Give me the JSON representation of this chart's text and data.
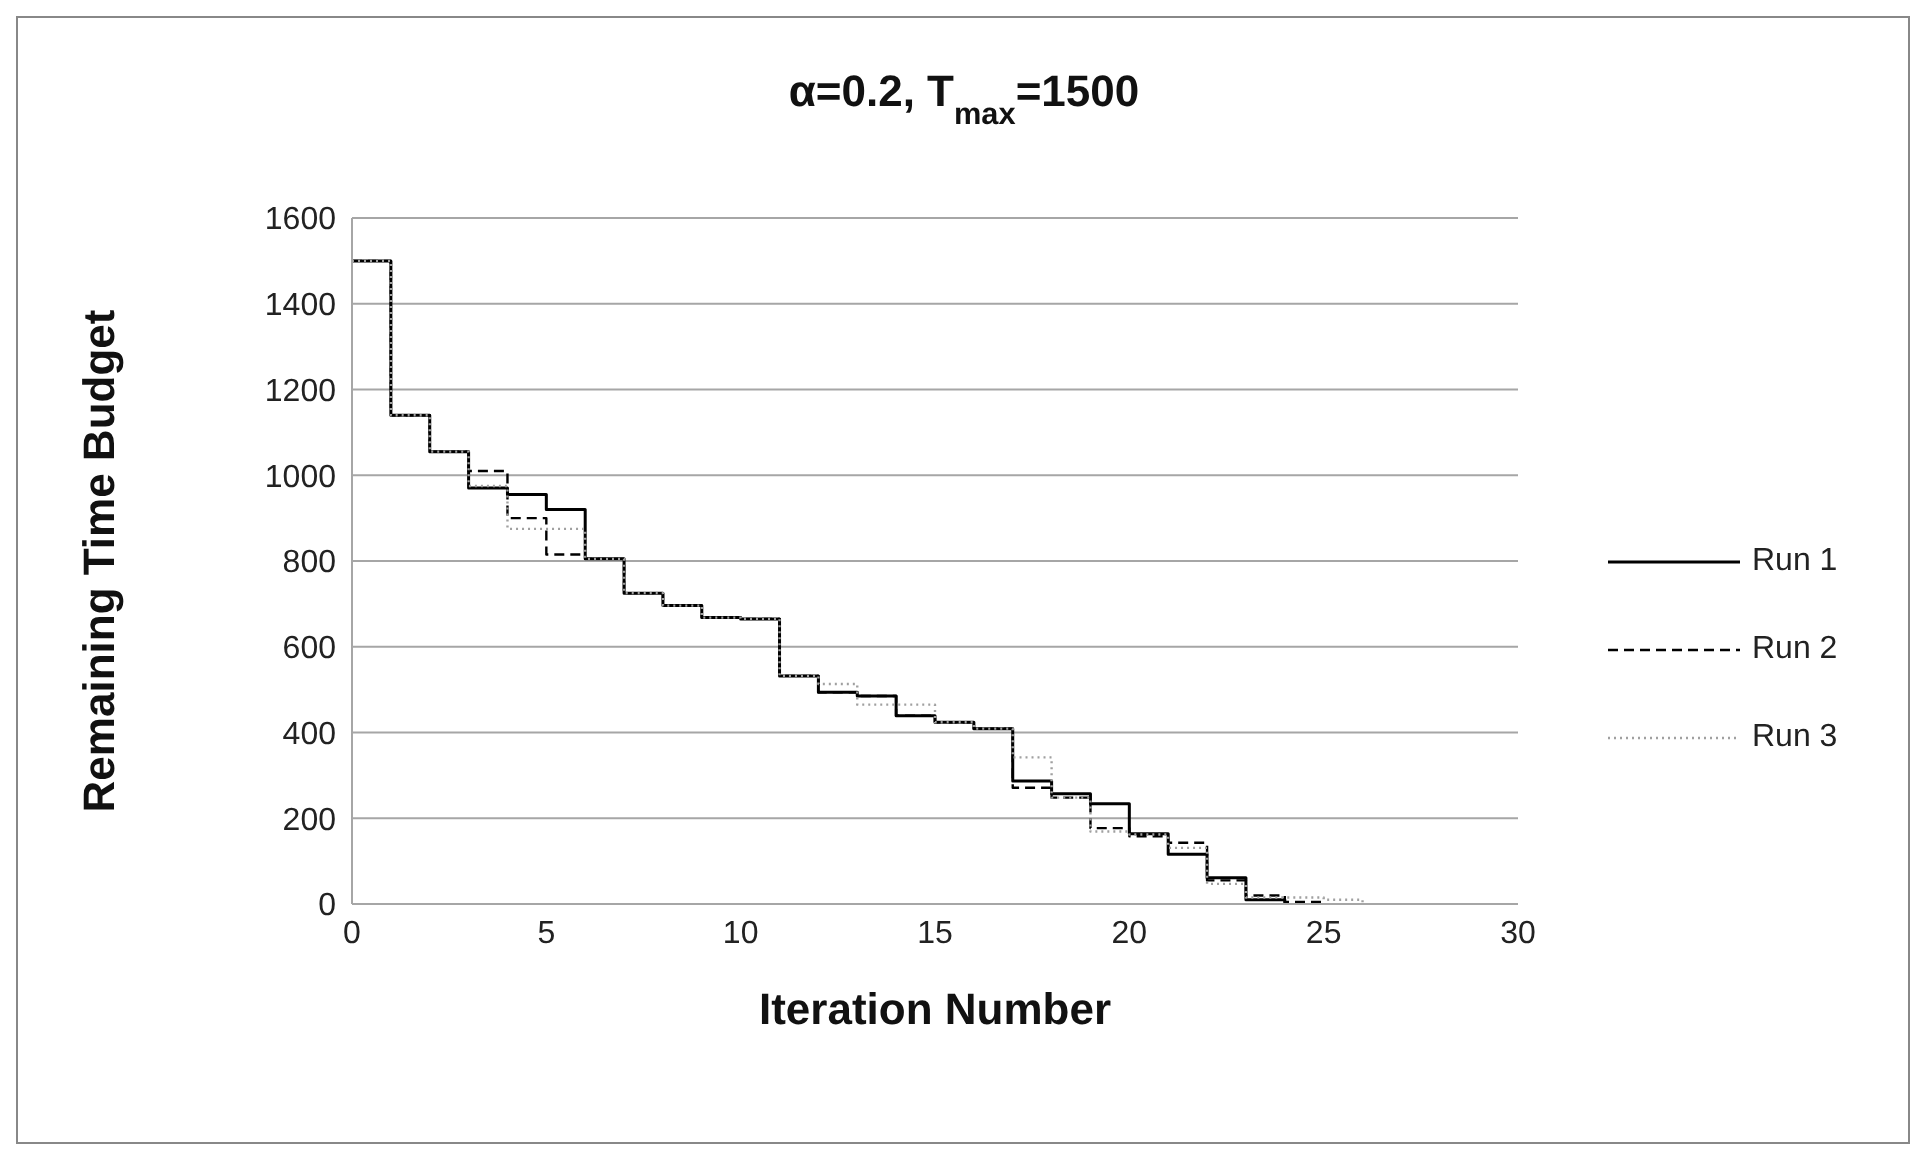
{
  "chart_data": {
    "type": "step",
    "title": "α=0.2, T$_{max}$=1500",
    "xlabel": "Iteration Number",
    "ylabel": "Remaining Time Budget",
    "xlim": [
      0,
      30
    ],
    "xticks": [
      0,
      5,
      10,
      15,
      20,
      25,
      30
    ],
    "ylim": [
      0,
      1600
    ],
    "yticks": [
      0,
      200,
      400,
      600,
      800,
      1000,
      1200,
      1400,
      1600
    ],
    "grid": "y",
    "legend": "right",
    "marker": "none",
    "series": [
      {
        "name": "Run 1",
        "color": "#000000",
        "line_style": "solid",
        "x": [
          0,
          1,
          2,
          3,
          4,
          5,
          6,
          7,
          8,
          9,
          10,
          11,
          12,
          13,
          14,
          15,
          16,
          17,
          18,
          19,
          20,
          21,
          22,
          23,
          24
        ],
        "values": [
          1500,
          1140,
          1055,
          970,
          955,
          920,
          805,
          725,
          696,
          668,
          665,
          532,
          494,
          485,
          439,
          424,
          409,
          287,
          257,
          234,
          164,
          116,
          61,
          10,
          0
        ]
      },
      {
        "name": "Run 2",
        "color": "#000000",
        "line_style": "dashed",
        "x": [
          0,
          1,
          2,
          3,
          4,
          5,
          6,
          7,
          8,
          9,
          10,
          11,
          12,
          13,
          14,
          15,
          16,
          17,
          18,
          19,
          20,
          21,
          22,
          23,
          24,
          25
        ],
        "values": [
          1500,
          1140,
          1055,
          1010,
          900,
          815,
          805,
          725,
          696,
          668,
          665,
          532,
          494,
          485,
          439,
          424,
          409,
          271,
          248,
          177,
          158,
          143,
          55,
          20,
          5,
          0
        ]
      },
      {
        "name": "Run 3",
        "color": "#a0a0a0",
        "line_style": "dotted",
        "x": [
          0,
          1,
          2,
          3,
          4,
          5,
          6,
          7,
          8,
          9,
          10,
          11,
          12,
          13,
          14,
          15,
          16,
          17,
          18,
          19,
          20,
          21,
          22,
          23,
          24,
          25,
          26
        ],
        "values": [
          1500,
          1140,
          1055,
          975,
          875,
          875,
          805,
          725,
          696,
          668,
          665,
          532,
          513,
          465,
          465,
          424,
          409,
          342,
          248,
          169,
          162,
          131,
          47,
          15,
          15,
          10,
          0
        ]
      }
    ]
  }
}
